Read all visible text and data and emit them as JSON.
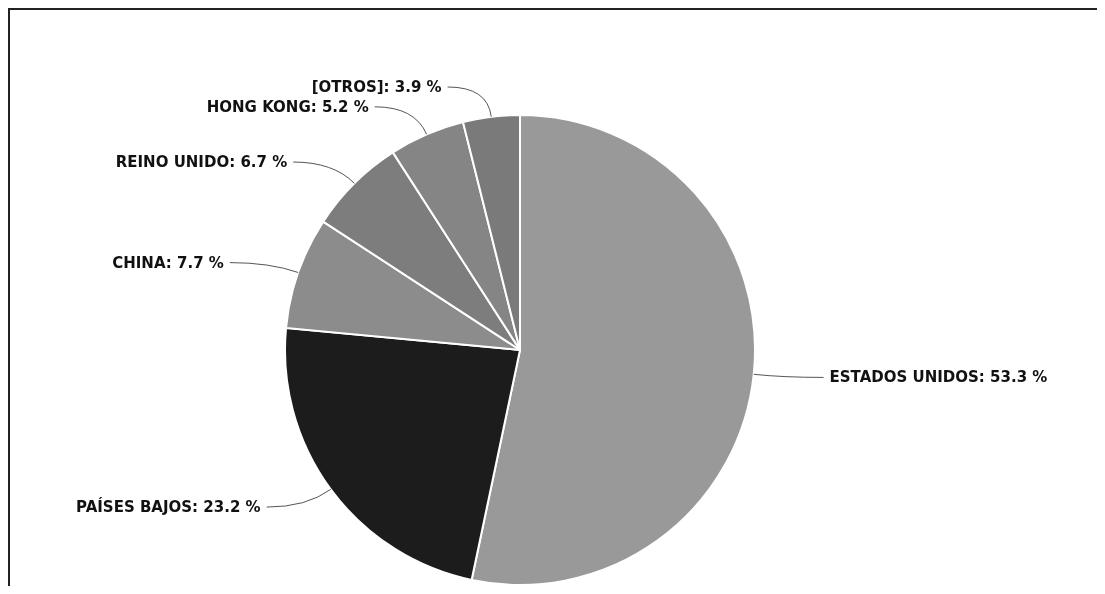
{
  "chart_data": {
    "type": "pie",
    "categories": [
      "ESTADOS UNIDOS",
      "PAÍSES BAJOS",
      "CHINA",
      "REINO UNIDO",
      "HONG KONG",
      "[OTROS]"
    ],
    "values": [
      53.3,
      23.2,
      7.7,
      6.7,
      5.2,
      3.9
    ],
    "value_labels": [
      "53.3 %",
      "23.2 %",
      "7.7 %",
      "6.7 %",
      "5.2 %",
      "3.9 %"
    ],
    "colors": [
      "#999999",
      "#1c1c1c",
      "#8c8c8c",
      "#7d7d7d",
      "#858585",
      "#7a7a7a"
    ]
  }
}
